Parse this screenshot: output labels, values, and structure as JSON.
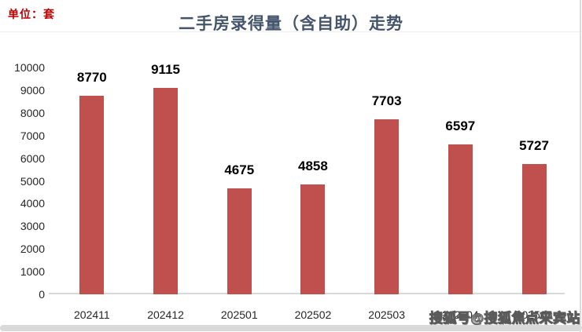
{
  "page": {
    "unit_label": "单位：套",
    "watermark": "搜狐号@搜狐焦点来宾站"
  },
  "chart_data": {
    "type": "bar",
    "title": "二手房录得量（含自助）走势",
    "categories": [
      "202411",
      "202412",
      "202501",
      "202502",
      "202503",
      "202504",
      "202505"
    ],
    "values": [
      8770,
      9115,
      4675,
      4858,
      7703,
      6597,
      5727
    ],
    "xlabel": "",
    "ylabel": "单位：套",
    "ylim": [
      0,
      10000
    ],
    "ytick_step": 1000,
    "grid": false,
    "legend": false,
    "data_labels": true,
    "colors": {
      "bar": "#C0504D",
      "value_label": "#000000",
      "tick_label": "#262626",
      "axis_line": "#D9D9D9",
      "title": "#44546A",
      "unit_label": "#C00000",
      "watermark_stroke": "#5a5a5a"
    }
  }
}
